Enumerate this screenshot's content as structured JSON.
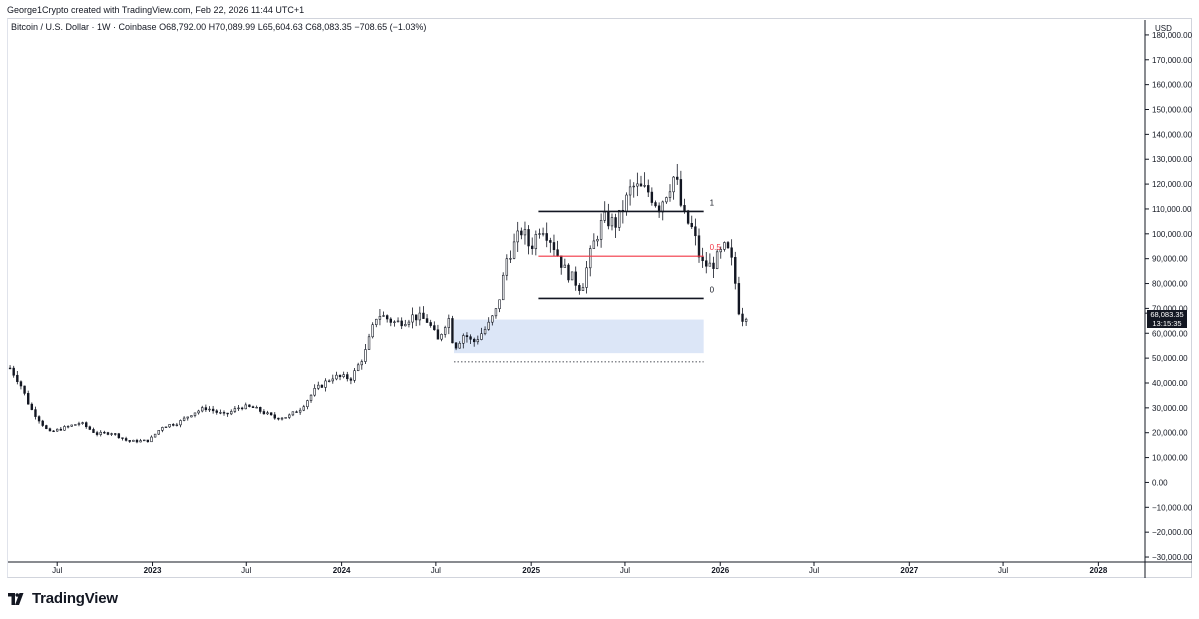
{
  "header": {
    "caption": "George1Crypto created with TradingView.com, Feb 22, 2026 11:44 UTC+1",
    "symbol": "Bitcoin / U.S. Dollar · 1W · Coinbase",
    "open": "O68,792.00",
    "high": "H70,089.99",
    "low": "L65,604.63",
    "close": "C68,083.35",
    "change": "−708.65 (−1.03%)"
  },
  "price_tag": {
    "price": "68,083.35",
    "countdown": "13:15:35"
  },
  "footer": {
    "brand": "TradingView"
  },
  "chart_data": {
    "type": "candlestick",
    "currency_label": "USD",
    "y_ticks": [
      "180,000.00",
      "170,000.00",
      "160,000.00",
      "150,000.00",
      "140,000.00",
      "130,000.00",
      "120,000.00",
      "110,000.00",
      "100,000.00",
      "90,000.00",
      "80,000.00",
      "70,000.00",
      "60,000.00",
      "50,000.00",
      "40,000.00",
      "30,000.00",
      "20,000.00",
      "10,000.00",
      "0.00",
      "−10,000.00",
      "−20,000.00",
      "−30,000.00"
    ],
    "y_tick_values": [
      180000,
      170000,
      160000,
      150000,
      140000,
      130000,
      120000,
      110000,
      100000,
      90000,
      80000,
      70000,
      60000,
      50000,
      40000,
      30000,
      20000,
      10000,
      0,
      -10000,
      -20000,
      -30000
    ],
    "x_ticks": [
      {
        "label": "Jul",
        "date": "2022-07-01",
        "bold": false
      },
      {
        "label": "2023",
        "date": "2023-01-01",
        "bold": true
      },
      {
        "label": "Jul",
        "date": "2023-07-01",
        "bold": false
      },
      {
        "label": "2024",
        "date": "2024-01-01",
        "bold": true
      },
      {
        "label": "Jul",
        "date": "2024-07-01",
        "bold": false
      },
      {
        "label": "2025",
        "date": "2025-01-01",
        "bold": true
      },
      {
        "label": "Jul",
        "date": "2025-07-01",
        "bold": false
      },
      {
        "label": "2026",
        "date": "2026-01-01",
        "bold": true
      },
      {
        "label": "Jul",
        "date": "2026-07-01",
        "bold": false
      },
      {
        "label": "2027",
        "date": "2027-01-01",
        "bold": true
      },
      {
        "label": "Jul",
        "date": "2027-07-01",
        "bold": false
      },
      {
        "label": "2028",
        "date": "2028-01-01",
        "bold": true
      }
    ],
    "x_range": [
      "2022-03-28",
      "2028-03-31"
    ],
    "y_range": [
      -32000,
      186000
    ],
    "close_path": [
      [
        "2022-04-01",
        46000
      ],
      [
        "2022-04-20",
        40000
      ],
      [
        "2022-05-10",
        30000
      ],
      [
        "2022-06-15",
        20000
      ],
      [
        "2022-07-15",
        22000
      ],
      [
        "2022-08-15",
        24000
      ],
      [
        "2022-09-15",
        19500
      ],
      [
        "2022-10-15",
        20000
      ],
      [
        "2022-11-15",
        16500
      ],
      [
        "2022-12-25",
        16800
      ],
      [
        "2023-01-20",
        22500
      ],
      [
        "2023-02-20",
        24000
      ],
      [
        "2023-03-20",
        28000
      ],
      [
        "2023-04-15",
        30000
      ],
      [
        "2023-05-20",
        27000
      ],
      [
        "2023-06-20",
        30500
      ],
      [
        "2023-07-15",
        30000
      ],
      [
        "2023-08-25",
        26000
      ],
      [
        "2023-09-20",
        26500
      ],
      [
        "2023-10-15",
        30000
      ],
      [
        "2023-11-10",
        37000
      ],
      [
        "2023-12-15",
        42500
      ],
      [
        "2024-01-20",
        42000
      ],
      [
        "2024-02-15",
        52000
      ],
      [
        "2024-03-10",
        68000
      ],
      [
        "2024-04-15",
        64000
      ],
      [
        "2024-05-20",
        67000
      ],
      [
        "2024-06-15",
        65000
      ],
      [
        "2024-07-05",
        57000
      ],
      [
        "2024-07-25",
        67000
      ],
      [
        "2024-08-05",
        54000
      ],
      [
        "2024-08-25",
        60000
      ],
      [
        "2024-09-10",
        56000
      ],
      [
        "2024-10-10",
        63000
      ],
      [
        "2024-10-28",
        70000
      ],
      [
        "2024-11-15",
        90000
      ],
      [
        "2024-12-15",
        102000
      ],
      [
        "2024-12-30",
        94000
      ],
      [
        "2025-01-20",
        104000
      ],
      [
        "2025-02-10",
        97000
      ],
      [
        "2025-03-05",
        86000
      ],
      [
        "2025-04-08",
        78000
      ],
      [
        "2025-04-28",
        94000
      ],
      [
        "2025-05-20",
        106000
      ],
      [
        "2025-06-15",
        104000
      ],
      [
        "2025-07-14",
        119000
      ],
      [
        "2025-08-15",
        117000
      ],
      [
        "2025-09-05",
        111000
      ],
      [
        "2025-10-06",
        124000
      ],
      [
        "2025-10-20",
        108000
      ],
      [
        "2025-11-10",
        101000
      ],
      [
        "2025-11-25",
        88000
      ],
      [
        "2025-12-15",
        87000
      ],
      [
        "2026-01-12",
        95000
      ],
      [
        "2026-01-26",
        87000
      ],
      [
        "2026-02-05",
        70000
      ],
      [
        "2026-02-12",
        66000
      ],
      [
        "2026-02-22",
        68083
      ]
    ],
    "annotations": {
      "fib_levels": [
        {
          "label": "1",
          "value": 109000,
          "start": "2025-01-15",
          "end": "2025-11-30",
          "color": "#131722"
        },
        {
          "label": "0.5",
          "value": 91000,
          "start": "2025-01-15",
          "end": "2025-11-30",
          "color": "#f23645"
        },
        {
          "label": "0",
          "value": 74000,
          "start": "2025-01-15",
          "end": "2025-11-30",
          "color": "#131722"
        }
      ],
      "zone": {
        "start": "2024-08-05",
        "end": "2025-11-30",
        "top": 65500,
        "bottom": 52000,
        "color": "#dce6f7"
      },
      "dotted_line": {
        "start": "2024-08-05",
        "end": "2025-11-30",
        "value": 48500
      }
    }
  }
}
